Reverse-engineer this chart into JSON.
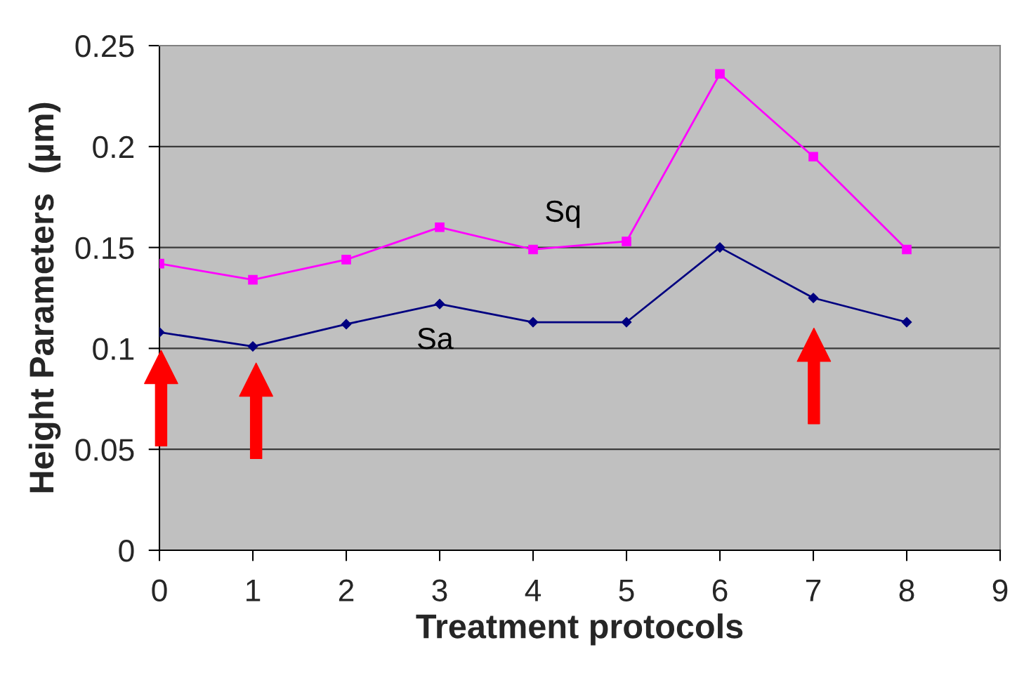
{
  "chart_data": {
    "type": "line",
    "xlabel": "Treatment protocols",
    "ylabel": "Height Parameters  (µm)",
    "x": [
      0,
      1,
      2,
      3,
      4,
      5,
      6,
      7,
      8
    ],
    "xlim": [
      0,
      9
    ],
    "xticks": [
      0,
      1,
      2,
      3,
      4,
      5,
      6,
      7,
      8,
      9
    ],
    "ylim": [
      0,
      0.25
    ],
    "yticks": [
      0,
      0.05,
      0.1,
      0.15,
      0.2,
      0.25
    ],
    "grid": "y",
    "line_style": "solid",
    "series": [
      {
        "name": "Sq",
        "color": "#ff00ff",
        "marker": "square",
        "values": [
          0.142,
          0.134,
          0.144,
          0.16,
          0.149,
          0.153,
          0.236,
          0.195,
          0.149
        ]
      },
      {
        "name": "Sa",
        "color": "#000080",
        "marker": "diamond",
        "values": [
          0.108,
          0.101,
          0.112,
          0.122,
          0.113,
          0.113,
          0.15,
          0.125,
          0.113
        ]
      }
    ]
  }
}
